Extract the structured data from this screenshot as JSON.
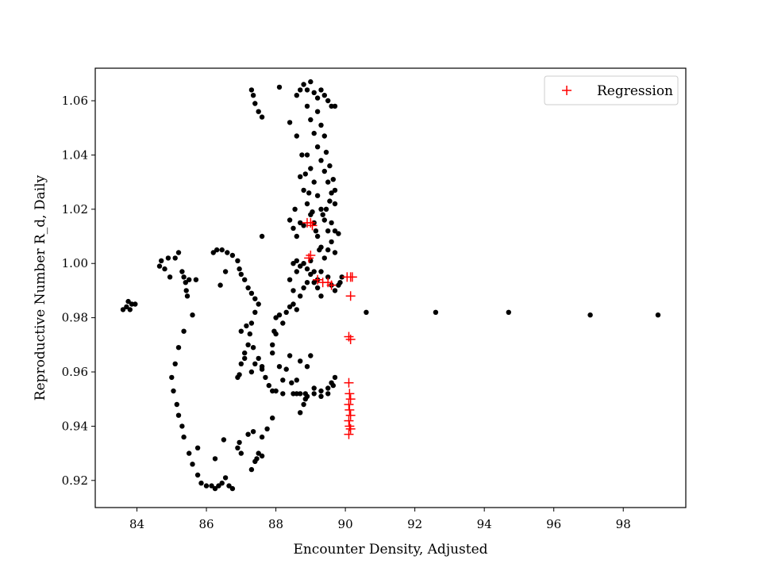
{
  "chart_data": {
    "type": "scatter",
    "title": "",
    "xlabel": "Encounter Density, Adjusted",
    "ylabel": "Reproductive Number R_d, Daily",
    "xlim": [
      82.8,
      99.8
    ],
    "ylim": [
      0.91,
      1.072
    ],
    "x_ticks": [
      84,
      86,
      88,
      90,
      92,
      94,
      96,
      98
    ],
    "y_ticks": [
      0.92,
      0.94,
      0.96,
      0.98,
      1.0,
      1.02,
      1.04,
      1.06
    ],
    "grid": false,
    "legend": {
      "position": "top-right",
      "entries": [
        "Regression"
      ]
    },
    "colors": {
      "points": "#000000",
      "regression": "#ff0000"
    },
    "series": [
      {
        "marker": "dot",
        "points": [
          [
            83.6,
            0.983
          ],
          [
            83.7,
            0.984
          ],
          [
            83.75,
            0.986
          ],
          [
            83.8,
            0.983
          ],
          [
            83.85,
            0.985
          ],
          [
            83.95,
            0.985
          ],
          [
            84.65,
            0.999
          ],
          [
            84.7,
            1.001
          ],
          [
            84.8,
            0.998
          ],
          [
            84.9,
            1.002
          ],
          [
            84.95,
            0.995
          ],
          [
            85.1,
            1.002
          ],
          [
            85.2,
            1.004
          ],
          [
            85.3,
            0.997
          ],
          [
            85.35,
            0.995
          ],
          [
            85.4,
            0.993
          ],
          [
            85.42,
            0.99
          ],
          [
            85.45,
            0.988
          ],
          [
            85.5,
            0.994
          ],
          [
            85.6,
            0.981
          ],
          [
            85.7,
            0.994
          ],
          [
            85.35,
            0.975
          ],
          [
            85.2,
            0.969
          ],
          [
            85.1,
            0.963
          ],
          [
            85.0,
            0.958
          ],
          [
            85.05,
            0.953
          ],
          [
            85.15,
            0.948
          ],
          [
            85.2,
            0.944
          ],
          [
            85.3,
            0.94
          ],
          [
            85.35,
            0.936
          ],
          [
            85.5,
            0.93
          ],
          [
            85.6,
            0.926
          ],
          [
            85.75,
            0.922
          ],
          [
            85.85,
            0.919
          ],
          [
            86.0,
            0.918
          ],
          [
            86.15,
            0.918
          ],
          [
            86.25,
            0.917
          ],
          [
            86.35,
            0.918
          ],
          [
            86.45,
            0.919
          ],
          [
            86.55,
            0.921
          ],
          [
            86.65,
            0.918
          ],
          [
            86.75,
            0.917
          ],
          [
            86.5,
            0.935
          ],
          [
            86.25,
            0.928
          ],
          [
            85.75,
            0.932
          ],
          [
            86.4,
            0.992
          ],
          [
            86.55,
            0.997
          ],
          [
            86.2,
            1.004
          ],
          [
            86.3,
            1.005
          ],
          [
            86.45,
            1.005
          ],
          [
            86.6,
            1.004
          ],
          [
            86.75,
            1.003
          ],
          [
            86.9,
            1.001
          ],
          [
            86.95,
            0.998
          ],
          [
            87.0,
            0.996
          ],
          [
            87.1,
            0.994
          ],
          [
            87.2,
            0.991
          ],
          [
            87.3,
            0.989
          ],
          [
            87.4,
            0.987
          ],
          [
            87.5,
            0.985
          ],
          [
            87.4,
            0.982
          ],
          [
            87.3,
            0.978
          ],
          [
            87.25,
            0.974
          ],
          [
            87.2,
            0.97
          ],
          [
            87.1,
            0.967
          ],
          [
            87.0,
            0.963
          ],
          [
            86.95,
            0.959
          ],
          [
            86.9,
            0.958
          ],
          [
            87.0,
            0.975
          ],
          [
            87.15,
            0.977
          ],
          [
            87.35,
            0.969
          ],
          [
            87.5,
            0.965
          ],
          [
            87.6,
            0.962
          ],
          [
            87.7,
            0.958
          ],
          [
            87.8,
            0.955
          ],
          [
            87.9,
            0.953
          ],
          [
            88.0,
            0.953
          ],
          [
            88.2,
            0.952
          ],
          [
            88.5,
            0.952
          ],
          [
            88.7,
            0.952
          ],
          [
            88.9,
            0.951
          ],
          [
            89.1,
            0.952
          ],
          [
            89.3,
            0.953
          ],
          [
            89.5,
            0.954
          ],
          [
            89.6,
            0.956
          ],
          [
            89.7,
            0.958
          ],
          [
            89.65,
            0.955
          ],
          [
            89.5,
            0.952
          ],
          [
            89.3,
            0.951
          ],
          [
            89.1,
            0.954
          ],
          [
            88.85,
            0.952
          ],
          [
            88.6,
            0.957
          ],
          [
            88.7,
            0.964
          ],
          [
            88.9,
            0.962
          ],
          [
            89.0,
            0.966
          ],
          [
            88.6,
            0.952
          ],
          [
            88.45,
            0.956
          ],
          [
            88.2,
            0.957
          ],
          [
            88.1,
            0.962
          ],
          [
            88.3,
            0.961
          ],
          [
            88.4,
            0.966
          ],
          [
            87.9,
            0.97
          ],
          [
            88.0,
            0.974
          ],
          [
            88.2,
            0.978
          ],
          [
            88.3,
            0.982
          ],
          [
            88.4,
            0.984
          ],
          [
            88.5,
            0.985
          ],
          [
            88.6,
            0.983
          ],
          [
            88.7,
            0.988
          ],
          [
            88.8,
            0.991
          ],
          [
            88.9,
            0.993
          ],
          [
            89.0,
            0.996
          ],
          [
            89.1,
            0.993
          ],
          [
            89.2,
            0.991
          ],
          [
            89.3,
            0.988
          ],
          [
            88.7,
            0.945
          ],
          [
            88.8,
            0.948
          ],
          [
            88.85,
            0.95
          ],
          [
            87.9,
            0.943
          ],
          [
            87.75,
            0.939
          ],
          [
            87.6,
            0.936
          ],
          [
            87.5,
            0.93
          ],
          [
            87.4,
            0.927
          ],
          [
            87.3,
            0.924
          ],
          [
            87.45,
            0.928
          ],
          [
            87.6,
            0.929
          ],
          [
            87.2,
            0.937
          ],
          [
            87.35,
            0.938
          ],
          [
            87.0,
            0.93
          ],
          [
            86.9,
            0.932
          ],
          [
            86.95,
            0.934
          ],
          [
            87.1,
            0.965
          ],
          [
            87.3,
            0.96
          ],
          [
            87.4,
            0.963
          ],
          [
            87.6,
            0.961
          ],
          [
            87.9,
            0.967
          ],
          [
            87.95,
            0.975
          ],
          [
            88.0,
            0.98
          ],
          [
            88.1,
            0.981
          ],
          [
            87.3,
            1.064
          ],
          [
            87.35,
            1.062
          ],
          [
            87.4,
            1.059
          ],
          [
            87.5,
            1.056
          ],
          [
            87.6,
            1.054
          ],
          [
            88.1,
            1.065
          ],
          [
            88.4,
            1.052
          ],
          [
            87.6,
            1.01
          ],
          [
            88.6,
            1.062
          ],
          [
            88.7,
            1.064
          ],
          [
            88.8,
            1.066
          ],
          [
            88.9,
            1.064
          ],
          [
            89.0,
            1.067
          ],
          [
            89.1,
            1.063
          ],
          [
            89.2,
            1.061
          ],
          [
            89.3,
            1.064
          ],
          [
            89.4,
            1.062
          ],
          [
            89.5,
            1.06
          ],
          [
            89.6,
            1.058
          ],
          [
            89.7,
            1.058
          ],
          [
            88.6,
            1.047
          ],
          [
            88.75,
            1.04
          ],
          [
            88.85,
            1.033
          ],
          [
            88.95,
            1.026
          ],
          [
            89.05,
            1.019
          ],
          [
            89.15,
            1.012
          ],
          [
            89.25,
            1.005
          ],
          [
            88.9,
            1.058
          ],
          [
            89.0,
            1.053
          ],
          [
            89.1,
            1.048
          ],
          [
            89.2,
            1.043
          ],
          [
            89.3,
            1.038
          ],
          [
            89.4,
            1.034
          ],
          [
            89.5,
            1.03
          ],
          [
            89.6,
            1.026
          ],
          [
            89.7,
            1.022
          ],
          [
            89.2,
            1.056
          ],
          [
            89.3,
            1.051
          ],
          [
            89.4,
            1.047
          ],
          [
            89.45,
            1.041
          ],
          [
            89.55,
            1.036
          ],
          [
            89.65,
            1.031
          ],
          [
            89.7,
            1.027
          ],
          [
            88.9,
            1.04
          ],
          [
            89.0,
            1.035
          ],
          [
            89.1,
            1.03
          ],
          [
            89.2,
            1.025
          ],
          [
            89.3,
            1.02
          ],
          [
            89.4,
            1.016
          ],
          [
            89.5,
            1.012
          ],
          [
            89.6,
            1.008
          ],
          [
            89.7,
            1.004
          ],
          [
            88.7,
            1.032
          ],
          [
            88.8,
            1.027
          ],
          [
            88.9,
            1.022
          ],
          [
            89.0,
            1.018
          ],
          [
            89.1,
            1.015
          ],
          [
            89.2,
            1.01
          ],
          [
            89.3,
            1.006
          ],
          [
            89.35,
            1.018
          ],
          [
            89.45,
            1.02
          ],
          [
            89.55,
            1.023
          ],
          [
            89.6,
            1.015
          ],
          [
            89.7,
            1.012
          ],
          [
            89.8,
            1.011
          ],
          [
            89.5,
            1.005
          ],
          [
            89.4,
            1.002
          ],
          [
            88.4,
            1.016
          ],
          [
            88.5,
            1.013
          ],
          [
            88.55,
            1.02
          ],
          [
            88.6,
            1.01
          ],
          [
            88.7,
            1.015
          ],
          [
            88.8,
            1.014
          ],
          [
            88.5,
            1.0
          ],
          [
            88.6,
            1.001
          ],
          [
            88.7,
            0.999
          ],
          [
            88.8,
            1.0
          ],
          [
            88.9,
            0.998
          ],
          [
            89.0,
            1.001
          ],
          [
            89.3,
            0.997
          ],
          [
            89.5,
            0.995
          ],
          [
            89.6,
            0.992
          ],
          [
            89.7,
            0.99
          ],
          [
            89.8,
            0.992
          ],
          [
            89.85,
            0.993
          ],
          [
            89.9,
            0.995
          ],
          [
            88.6,
            0.997
          ],
          [
            88.4,
            0.994
          ],
          [
            88.5,
            0.99
          ],
          [
            89.1,
            0.997
          ],
          [
            89.2,
            0.994
          ],
          [
            90.6,
            0.982
          ],
          [
            92.6,
            0.982
          ],
          [
            94.7,
            0.982
          ],
          [
            97.05,
            0.981
          ],
          [
            99.0,
            0.981
          ]
        ]
      },
      {
        "name": "Regression",
        "marker": "plus",
        "points": [
          [
            88.9,
            1.015
          ],
          [
            89.0,
            1.015
          ],
          [
            89.05,
            1.014
          ],
          [
            89.0,
            1.003
          ],
          [
            88.95,
            1.002
          ],
          [
            89.2,
            0.994
          ],
          [
            89.35,
            0.993
          ],
          [
            89.5,
            0.993
          ],
          [
            89.6,
            0.992
          ],
          [
            90.05,
            0.995
          ],
          [
            90.15,
            0.995
          ],
          [
            90.2,
            0.995
          ],
          [
            90.15,
            0.988
          ],
          [
            90.1,
            0.973
          ],
          [
            90.15,
            0.972
          ],
          [
            90.1,
            0.956
          ],
          [
            90.12,
            0.952
          ],
          [
            90.15,
            0.95
          ],
          [
            90.1,
            0.948
          ],
          [
            90.12,
            0.946
          ],
          [
            90.15,
            0.944
          ],
          [
            90.1,
            0.942
          ],
          [
            90.12,
            0.94
          ],
          [
            90.15,
            0.939
          ],
          [
            90.1,
            0.937
          ]
        ]
      }
    ]
  }
}
